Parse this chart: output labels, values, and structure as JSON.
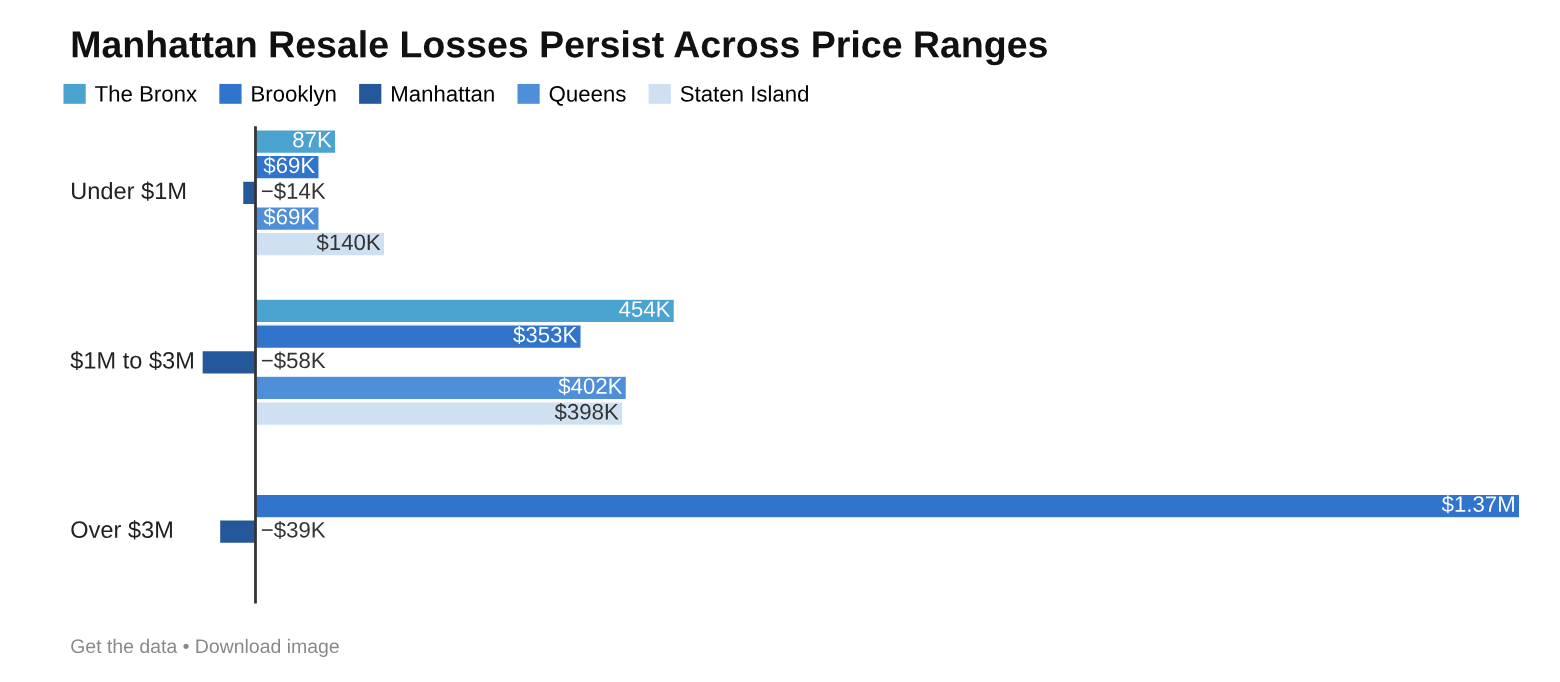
{
  "chart_data": {
    "type": "bar",
    "orientation": "horizontal",
    "title": "Manhattan Resale Losses Persist Across Price Ranges",
    "categories": [
      "Under $1M",
      "$1M to $3M",
      "Over $3M"
    ],
    "series": [
      {
        "name": "The Bronx",
        "color": "#4ba3d0",
        "values": [
          87000,
          454000,
          null
        ],
        "value_labels": [
          "87K",
          "454K",
          null
        ]
      },
      {
        "name": "Brooklyn",
        "color": "#3074cc",
        "values": [
          69000,
          353000,
          1370000
        ],
        "value_labels": [
          "$69K",
          "$353K",
          "$1.37M"
        ]
      },
      {
        "name": "Manhattan",
        "color": "#24589b",
        "values": [
          -14000,
          -58000,
          -39000
        ],
        "value_labels": [
          "−$14K",
          "−$58K",
          "−$39K"
        ]
      },
      {
        "name": "Queens",
        "color": "#4f8fd9",
        "values": [
          69000,
          402000,
          null
        ],
        "value_labels": [
          "$69K",
          "$402K",
          null
        ]
      },
      {
        "name": "Staten Island",
        "color": "#cfe0f3",
        "values": [
          140000,
          398000,
          null
        ],
        "value_labels": [
          "$140K",
          "$398K",
          null
        ]
      }
    ],
    "legend": "top left",
    "annotations": [
      "Get the data • Download image"
    ]
  }
}
